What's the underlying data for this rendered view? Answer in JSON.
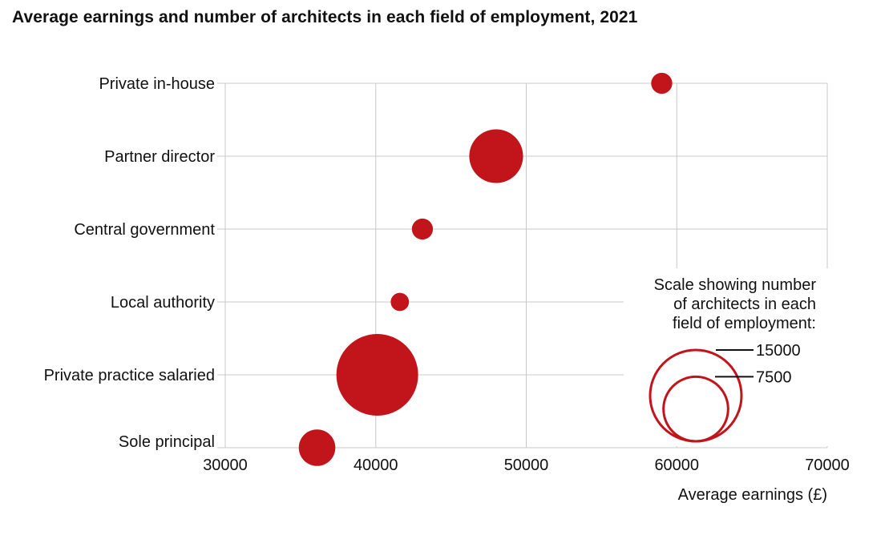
{
  "title": "Average earnings and number of architects in each field of employment, 2021",
  "chart_data": {
    "type": "scatter",
    "title": "Average earnings and number of architects in each field of employment, 2021",
    "xlabel": "Average earnings (£)",
    "ylabel": "",
    "xlim": [
      30000,
      70000
    ],
    "xticks": [
      30000,
      40000,
      50000,
      60000,
      70000
    ],
    "xtick_labels": [
      "30000",
      "40000",
      "50000",
      "60000",
      "70000"
    ],
    "categories": [
      "Private in-house",
      "Partner director",
      "Central government",
      "Local authority",
      "Private practice salaried",
      "Sole principal"
    ],
    "points": [
      {
        "category": "Private in-house",
        "earnings": 59000,
        "architects": 800
      },
      {
        "category": "Partner director",
        "earnings": 48000,
        "architects": 5200
      },
      {
        "category": "Central government",
        "earnings": 43100,
        "architects": 800
      },
      {
        "category": "Local authority",
        "earnings": 41600,
        "architects": 600
      },
      {
        "category": "Private practice salaried",
        "earnings": 40100,
        "architects": 12000
      },
      {
        "category": "Sole principal",
        "earnings": 36100,
        "architects": 2400
      }
    ],
    "grid": true,
    "color": "#c1141b",
    "size_legend": {
      "title_lines": [
        "Scale showing number",
        "of architects in each",
        "field of employment:"
      ],
      "values": [
        15000,
        7500
      ],
      "labels": [
        "15000",
        "7500"
      ]
    }
  }
}
